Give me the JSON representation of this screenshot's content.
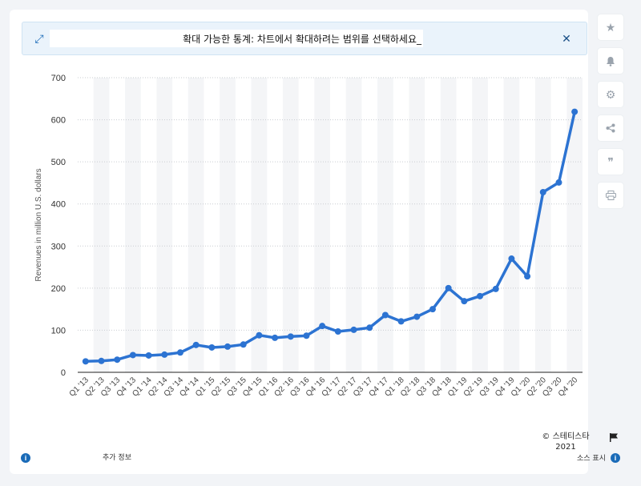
{
  "banner": {
    "text": "확대 가능한 통계: 차트에서 확대하려는 범위를 선택하세요_",
    "expand_icon": "expand-icon",
    "close_icon": "close-icon"
  },
  "toolbar": {
    "items": [
      {
        "name": "star-icon",
        "glyph": "★"
      },
      {
        "name": "bell-icon",
        "glyph": "🔔"
      },
      {
        "name": "gear-icon",
        "glyph": "⚙"
      },
      {
        "name": "share-icon",
        "glyph": "⋖"
      },
      {
        "name": "quote-icon",
        "glyph": "❞"
      },
      {
        "name": "print-icon",
        "glyph": "⎙"
      }
    ]
  },
  "footer": {
    "more_info": "추가 정보",
    "credit_line1": "© 스테티스타",
    "credit_line2": "2021",
    "source": "소스 표시"
  },
  "chart_data": {
    "type": "line",
    "title": "",
    "xlabel": "",
    "ylabel": "Revenues in million U.S. dollars",
    "ylim": [
      0,
      700
    ],
    "yticks": [
      0,
      100,
      200,
      300,
      400,
      500,
      600,
      700
    ],
    "grid": true,
    "line_color": "#2c73d2",
    "categories": [
      "Q1 '13",
      "Q2 '13",
      "Q3 '13",
      "Q4 '13",
      "Q1 '14",
      "Q2 '14",
      "Q3 '14",
      "Q4 '14",
      "Q1 '15",
      "Q2 '15",
      "Q3 '15",
      "Q4 '15",
      "Q1 '16",
      "Q2 '16",
      "Q3 '16",
      "Q4 '16",
      "Q1 '17",
      "Q2 '17",
      "Q3 '17",
      "Q4 '17",
      "Q1 '18",
      "Q2 '18",
      "Q3 '18",
      "Q4 '18",
      "Q1 '19",
      "Q2 '19",
      "Q3 '19",
      "Q4 '19",
      "Q1 '20",
      "Q2 '20",
      "Q3 '20",
      "Q4 '20"
    ],
    "values": [
      26,
      27,
      30,
      41,
      40,
      42,
      47,
      65,
      59,
      61,
      66,
      88,
      82,
      85,
      87,
      110,
      97,
      101,
      106,
      136,
      121,
      132,
      150,
      200,
      169,
      181,
      198,
      270,
      228,
      428,
      451,
      619
    ]
  }
}
